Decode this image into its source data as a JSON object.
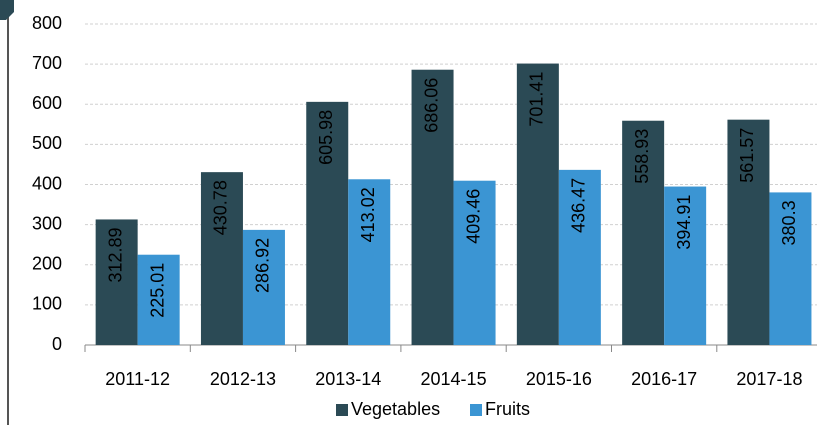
{
  "chart_data": {
    "type": "bar",
    "categories": [
      "2011-12",
      "2012-13",
      "2013-14",
      "2014-15",
      "2015-16",
      "2016-17",
      "2017-18"
    ],
    "series": [
      {
        "name": "Vegetables",
        "color": "#2b4a55",
        "values": [
          312.89,
          430.78,
          605.98,
          686.06,
          701.41,
          558.93,
          561.57
        ]
      },
      {
        "name": "Fruits",
        "color": "#3b95d3",
        "values": [
          225.01,
          286.92,
          413.02,
          409.46,
          436.47,
          394.91,
          380.3
        ]
      }
    ],
    "ylim": [
      0,
      800
    ],
    "yticks": [
      0,
      100,
      200,
      300,
      400,
      500,
      600,
      700,
      800
    ],
    "grid": true,
    "legend": "bottom"
  }
}
